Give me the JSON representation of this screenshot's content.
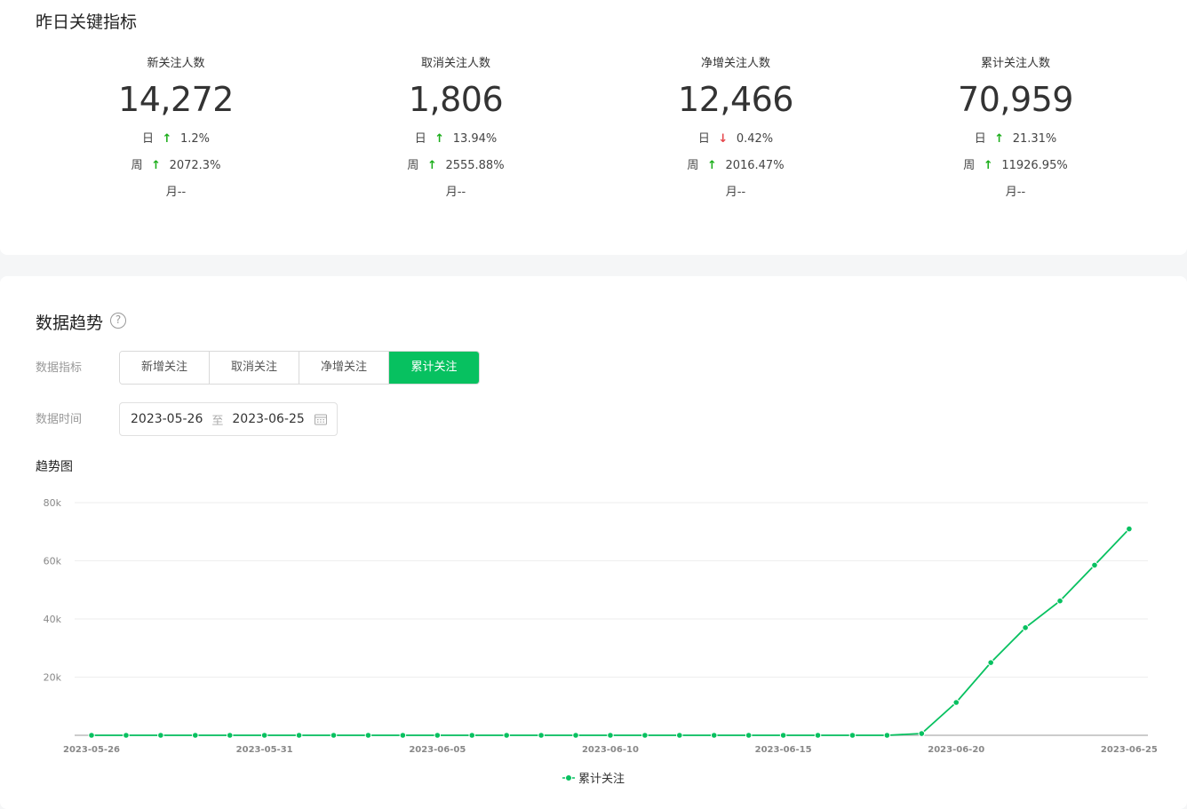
{
  "yesterday": {
    "title": "昨日关键指标",
    "metrics": [
      {
        "label": "新关注人数",
        "value": "14,272",
        "day_prefix": "日",
        "day_dir": "up",
        "day_change": "1.2%",
        "week_prefix": "周",
        "week_dir": "up",
        "week_change": "2072.3%",
        "month": "月--"
      },
      {
        "label": "取消关注人数",
        "value": "1,806",
        "day_prefix": "日",
        "day_dir": "up",
        "day_change": "13.94%",
        "week_prefix": "周",
        "week_dir": "up",
        "week_change": "2555.88%",
        "month": "月--"
      },
      {
        "label": "净增关注人数",
        "value": "12,466",
        "day_prefix": "日",
        "day_dir": "down",
        "day_change": "0.42%",
        "week_prefix": "周",
        "week_dir": "up",
        "week_change": "2016.47%",
        "month": "月--"
      },
      {
        "label": "累计关注人数",
        "value": "70,959",
        "day_prefix": "日",
        "day_dir": "up",
        "day_change": "21.31%",
        "week_prefix": "周",
        "week_dir": "up",
        "week_change": "11926.95%",
        "month": "月--"
      }
    ]
  },
  "trend": {
    "title": "数据趋势",
    "help_icon": "question-circle-icon",
    "metric_label": "数据指标",
    "tabs": [
      "新增关注",
      "取消关注",
      "净增关注",
      "累计关注"
    ],
    "active_tab": 3,
    "time_label": "数据时间",
    "date_start": "2023-05-26",
    "date_sep": "至",
    "date_end": "2023-06-25",
    "calendar_icon": "calendar-icon",
    "chart_title": "趋势图",
    "accent_color": "#07c160"
  },
  "chart_data": {
    "type": "line",
    "title": "趋势图",
    "x": [
      "2023-05-26",
      "2023-05-27",
      "2023-05-28",
      "2023-05-29",
      "2023-05-30",
      "2023-05-31",
      "2023-06-01",
      "2023-06-02",
      "2023-06-03",
      "2023-06-04",
      "2023-06-05",
      "2023-06-06",
      "2023-06-07",
      "2023-06-08",
      "2023-06-09",
      "2023-06-10",
      "2023-06-11",
      "2023-06-12",
      "2023-06-13",
      "2023-06-14",
      "2023-06-15",
      "2023-06-16",
      "2023-06-17",
      "2023-06-18",
      "2023-06-19",
      "2023-06-20",
      "2023-06-21",
      "2023-06-22",
      "2023-06-23",
      "2023-06-24",
      "2023-06-25"
    ],
    "x_tick_labels": [
      "2023-05-26",
      "2023-05-31",
      "2023-06-05",
      "2023-06-10",
      "2023-06-15",
      "2023-06-20",
      "2023-06-25"
    ],
    "series": [
      {
        "name": "累计关注",
        "color": "#07c160",
        "values": [
          0,
          0,
          0,
          0,
          0,
          0,
          0,
          0,
          0,
          0,
          0,
          0,
          0,
          0,
          0,
          0,
          0,
          0,
          0,
          0,
          0,
          0,
          0,
          0,
          600,
          11300,
          25000,
          37000,
          46200,
          58500,
          70959
        ]
      }
    ],
    "y_ticks": [
      "20k",
      "40k",
      "60k",
      "80k"
    ],
    "ylim": [
      0,
      80000
    ],
    "grid": true,
    "legend": "bottom-center"
  }
}
